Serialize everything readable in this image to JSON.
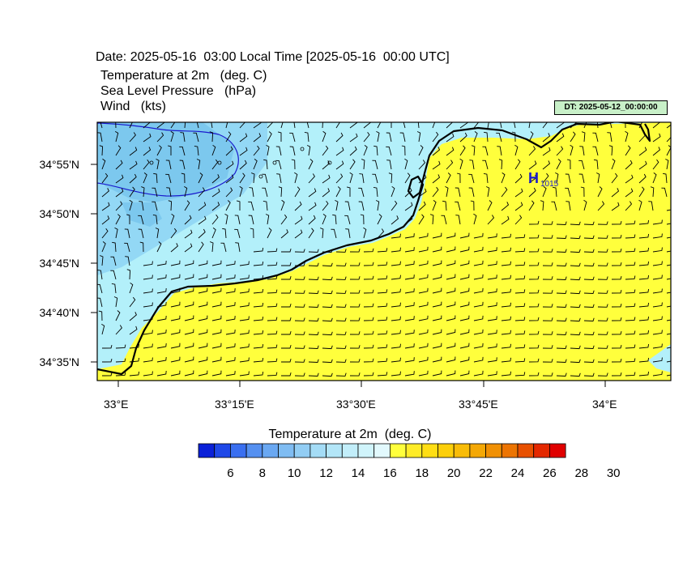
{
  "header": {
    "date_line": "Date: 2025-05-16  03:00 Local Time [2025-05-16  00:00 UTC]",
    "field_1": "Temperature at 2m   (deg. C)",
    "field_2": "Sea Level Pressure   (hPa)",
    "field_3": "Wind   (kts)",
    "init_badge": "DT: 2025-05-12_00:00:00"
  },
  "map": {
    "lat_labels": [
      "34°55'N",
      "34°50'N",
      "34°45'N",
      "34°40'N",
      "34°35'N"
    ],
    "lon_labels": [
      "33°E",
      "33°15'E",
      "33°30'E",
      "33°45'E",
      "34°E"
    ],
    "pressure_center": {
      "letter": "H",
      "value": "1015"
    },
    "colors": {
      "land": "#ffff3c",
      "sea_warm": "#b3f0fa",
      "sea_cool": "#93d8f5",
      "sea_cold": "#7cc8ee",
      "isobar": "#1a1acd",
      "coast": "#000000",
      "center_label": "#1a1acd"
    }
  },
  "colorbar": {
    "title": "Temperature at 2m  (deg. C)",
    "labels": [
      "6",
      "8",
      "10",
      "12",
      "14",
      "16",
      "18",
      "20",
      "22",
      "24",
      "26",
      "28",
      "30"
    ],
    "colors": [
      "#0a20d8",
      "#1f48e8",
      "#3a6ff0",
      "#5590f0",
      "#6aa8f2",
      "#7fbcf2",
      "#92cdf4",
      "#a4dcf6",
      "#b3e6f8",
      "#c2eefa",
      "#d0f4fb",
      "#e2f9fd",
      "#ffff3c",
      "#ffec28",
      "#ffde14",
      "#fccf0a",
      "#f8bc08",
      "#f4a806",
      "#f09004",
      "#ec7402",
      "#e85000",
      "#e42800",
      "#e00000"
    ]
  }
}
